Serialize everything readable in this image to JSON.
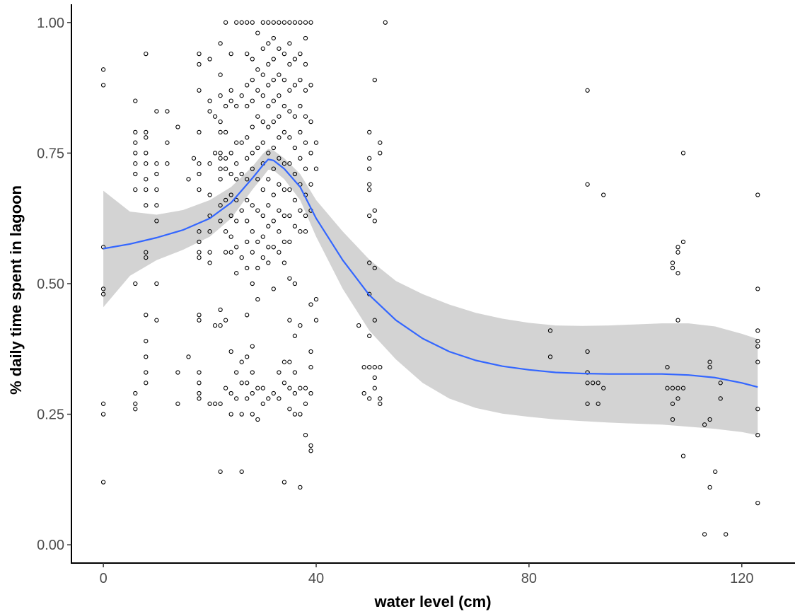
{
  "chart_data": {
    "type": "scatter",
    "xlabel": "water level (cm)",
    "ylabel": "% daily time spent in lagoon",
    "xlim": [
      -6,
      130
    ],
    "ylim": [
      -0.035,
      1.035
    ],
    "xticks": [
      0,
      40,
      80,
      120
    ],
    "xtick_labels": [
      "0",
      "40",
      "80",
      "120"
    ],
    "yticks": [
      0,
      0.25,
      0.5,
      0.75,
      1.0
    ],
    "ytick_labels": [
      "0.00",
      "0.25",
      "0.50",
      "0.75",
      "1.00"
    ],
    "grid": false,
    "legend": "none",
    "colors": {
      "points": "#000000",
      "smooth_line": "#3366ff",
      "confidence_band": "#d3d3d3"
    },
    "points": [
      [
        0,
        0.91
      ],
      [
        0,
        0.88
      ],
      [
        0,
        0.57
      ],
      [
        0,
        0.49
      ],
      [
        0,
        0.48
      ],
      [
        0,
        0.27
      ],
      [
        0,
        0.25
      ],
      [
        0,
        0.12
      ],
      [
        6,
        0.85
      ],
      [
        6,
        0.5
      ],
      [
        6,
        0.29
      ],
      [
        6,
        0.27
      ],
      [
        6,
        0.26
      ],
      [
        6,
        0.79
      ],
      [
        6,
        0.77
      ],
      [
        6,
        0.75
      ],
      [
        6,
        0.73
      ],
      [
        6,
        0.71
      ],
      [
        6,
        0.68
      ],
      [
        8,
        0.94
      ],
      [
        8,
        0.79
      ],
      [
        8,
        0.78
      ],
      [
        8,
        0.75
      ],
      [
        8,
        0.73
      ],
      [
        8,
        0.7
      ],
      [
        8,
        0.68
      ],
      [
        8,
        0.65
      ],
      [
        8,
        0.56
      ],
      [
        8,
        0.55
      ],
      [
        8,
        0.44
      ],
      [
        8,
        0.39
      ],
      [
        8,
        0.36
      ],
      [
        8,
        0.33
      ],
      [
        8,
        0.31
      ],
      [
        10,
        0.83
      ],
      [
        10,
        0.73
      ],
      [
        10,
        0.71
      ],
      [
        10,
        0.68
      ],
      [
        10,
        0.65
      ],
      [
        10,
        0.62
      ],
      [
        10,
        0.5
      ],
      [
        10,
        0.43
      ],
      [
        12,
        0.83
      ],
      [
        12,
        0.77
      ],
      [
        12,
        0.73
      ],
      [
        14,
        0.8
      ],
      [
        14,
        0.33
      ],
      [
        14,
        0.27
      ],
      [
        16,
        0.36
      ],
      [
        16,
        0.7
      ],
      [
        17,
        0.74
      ],
      [
        18,
        0.94
      ],
      [
        18,
        0.92
      ],
      [
        18,
        0.87
      ],
      [
        18,
        0.79
      ],
      [
        18,
        0.73
      ],
      [
        18,
        0.71
      ],
      [
        18,
        0.68
      ],
      [
        18,
        0.6
      ],
      [
        18,
        0.58
      ],
      [
        18,
        0.56
      ],
      [
        18,
        0.55
      ],
      [
        18,
        0.44
      ],
      [
        18,
        0.43
      ],
      [
        18,
        0.33
      ],
      [
        18,
        0.31
      ],
      [
        18,
        0.29
      ],
      [
        18,
        0.28
      ],
      [
        20,
        0.93
      ],
      [
        20,
        0.85
      ],
      [
        20,
        0.83
      ],
      [
        20,
        0.73
      ],
      [
        20,
        0.67
      ],
      [
        20,
        0.63
      ],
      [
        20,
        0.6
      ],
      [
        20,
        0.56
      ],
      [
        20,
        0.54
      ],
      [
        20,
        0.27
      ],
      [
        21,
        0.42
      ],
      [
        21,
        0.27
      ],
      [
        21,
        0.82
      ],
      [
        21,
        0.75
      ],
      [
        22,
        0.96
      ],
      [
        22,
        0.9
      ],
      [
        22,
        0.86
      ],
      [
        22,
        0.81
      ],
      [
        22,
        0.79
      ],
      [
        22,
        0.75
      ],
      [
        22,
        0.74
      ],
      [
        22,
        0.72
      ],
      [
        22,
        0.7
      ],
      [
        22,
        0.65
      ],
      [
        22,
        0.62
      ],
      [
        22,
        0.45
      ],
      [
        22,
        0.42
      ],
      [
        22,
        0.27
      ],
      [
        22,
        0.14
      ],
      [
        23,
        1.0
      ],
      [
        23,
        0.84
      ],
      [
        23,
        0.79
      ],
      [
        23,
        0.74
      ],
      [
        23,
        0.72
      ],
      [
        23,
        0.66
      ],
      [
        23,
        0.6
      ],
      [
        23,
        0.56
      ],
      [
        23,
        0.43
      ],
      [
        23,
        0.3
      ],
      [
        24,
        0.94
      ],
      [
        24,
        0.87
      ],
      [
        24,
        0.85
      ],
      [
        24,
        0.75
      ],
      [
        24,
        0.71
      ],
      [
        24,
        0.67
      ],
      [
        24,
        0.63
      ],
      [
        24,
        0.59
      ],
      [
        24,
        0.56
      ],
      [
        24,
        0.37
      ],
      [
        24,
        0.29
      ],
      [
        24,
        0.25
      ],
      [
        25,
        1.0
      ],
      [
        25,
        0.84
      ],
      [
        25,
        0.77
      ],
      [
        25,
        0.73
      ],
      [
        25,
        0.7
      ],
      [
        25,
        0.66
      ],
      [
        25,
        0.62
      ],
      [
        25,
        0.57
      ],
      [
        25,
        0.52
      ],
      [
        25,
        0.33
      ],
      [
        25,
        0.28
      ],
      [
        26,
        1.0
      ],
      [
        26,
        0.86
      ],
      [
        26,
        0.77
      ],
      [
        26,
        0.71
      ],
      [
        26,
        0.64
      ],
      [
        26,
        0.55
      ],
      [
        26,
        0.35
      ],
      [
        26,
        0.31
      ],
      [
        26,
        0.25
      ],
      [
        26,
        0.14
      ],
      [
        27,
        1.0
      ],
      [
        27,
        0.94
      ],
      [
        27,
        0.88
      ],
      [
        27,
        0.84
      ],
      [
        27,
        0.78
      ],
      [
        27,
        0.74
      ],
      [
        27,
        0.7
      ],
      [
        27,
        0.66
      ],
      [
        27,
        0.62
      ],
      [
        27,
        0.58
      ],
      [
        27,
        0.53
      ],
      [
        27,
        0.44
      ],
      [
        27,
        0.36
      ],
      [
        27,
        0.31
      ],
      [
        27,
        0.28
      ],
      [
        28,
        1.0
      ],
      [
        28,
        0.93
      ],
      [
        28,
        0.89
      ],
      [
        28,
        0.85
      ],
      [
        28,
        0.8
      ],
      [
        28,
        0.75
      ],
      [
        28,
        0.72
      ],
      [
        28,
        0.65
      ],
      [
        28,
        0.6
      ],
      [
        28,
        0.56
      ],
      [
        28,
        0.5
      ],
      [
        28,
        0.38
      ],
      [
        28,
        0.33
      ],
      [
        28,
        0.29
      ],
      [
        28,
        0.25
      ],
      [
        29,
        0.98
      ],
      [
        29,
        0.91
      ],
      [
        29,
        0.87
      ],
      [
        29,
        0.82
      ],
      [
        29,
        0.76
      ],
      [
        29,
        0.7
      ],
      [
        29,
        0.64
      ],
      [
        29,
        0.58
      ],
      [
        29,
        0.53
      ],
      [
        29,
        0.47
      ],
      [
        29,
        0.3
      ],
      [
        29,
        0.24
      ],
      [
        30,
        1.0
      ],
      [
        30,
        0.95
      ],
      [
        30,
        0.9
      ],
      [
        30,
        0.86
      ],
      [
        30,
        0.81
      ],
      [
        30,
        0.77
      ],
      [
        30,
        0.73
      ],
      [
        30,
        0.68
      ],
      [
        30,
        0.63
      ],
      [
        30,
        0.59
      ],
      [
        30,
        0.55
      ],
      [
        30,
        0.3
      ],
      [
        30,
        0.27
      ],
      [
        31,
        1.0
      ],
      [
        31,
        0.96
      ],
      [
        31,
        0.92
      ],
      [
        31,
        0.88
      ],
      [
        31,
        0.84
      ],
      [
        31,
        0.8
      ],
      [
        31,
        0.75
      ],
      [
        31,
        0.7
      ],
      [
        31,
        0.65
      ],
      [
        31,
        0.61
      ],
      [
        31,
        0.57
      ],
      [
        31,
        0.54
      ],
      [
        31,
        0.28
      ],
      [
        32,
        1.0
      ],
      [
        32,
        0.97
      ],
      [
        32,
        0.93
      ],
      [
        32,
        0.89
      ],
      [
        32,
        0.85
      ],
      [
        32,
        0.81
      ],
      [
        32,
        0.76
      ],
      [
        32,
        0.72
      ],
      [
        32,
        0.67
      ],
      [
        32,
        0.62
      ],
      [
        32,
        0.57
      ],
      [
        32,
        0.49
      ],
      [
        32,
        0.29
      ],
      [
        33,
        1.0
      ],
      [
        33,
        0.95
      ],
      [
        33,
        0.9
      ],
      [
        33,
        0.86
      ],
      [
        33,
        0.82
      ],
      [
        33,
        0.78
      ],
      [
        33,
        0.74
      ],
      [
        33,
        0.69
      ],
      [
        33,
        0.64
      ],
      [
        33,
        0.6
      ],
      [
        33,
        0.56
      ],
      [
        33,
        0.33
      ],
      [
        33,
        0.28
      ],
      [
        34,
        1.0
      ],
      [
        34,
        0.94
      ],
      [
        34,
        0.89
      ],
      [
        34,
        0.84
      ],
      [
        34,
        0.79
      ],
      [
        34,
        0.73
      ],
      [
        34,
        0.68
      ],
      [
        34,
        0.63
      ],
      [
        34,
        0.58
      ],
      [
        34,
        0.54
      ],
      [
        34,
        0.35
      ],
      [
        34,
        0.31
      ],
      [
        34,
        0.12
      ],
      [
        35,
        1.0
      ],
      [
        35,
        0.96
      ],
      [
        35,
        0.92
      ],
      [
        35,
        0.87
      ],
      [
        35,
        0.83
      ],
      [
        35,
        0.78
      ],
      [
        35,
        0.73
      ],
      [
        35,
        0.68
      ],
      [
        35,
        0.63
      ],
      [
        35,
        0.58
      ],
      [
        35,
        0.51
      ],
      [
        35,
        0.43
      ],
      [
        35,
        0.35
      ],
      [
        35,
        0.3
      ],
      [
        35,
        0.26
      ],
      [
        36,
        1.0
      ],
      [
        36,
        0.93
      ],
      [
        36,
        0.88
      ],
      [
        36,
        0.82
      ],
      [
        36,
        0.76
      ],
      [
        36,
        0.71
      ],
      [
        36,
        0.66
      ],
      [
        36,
        0.61
      ],
      [
        36,
        0.5
      ],
      [
        36,
        0.4
      ],
      [
        36,
        0.33
      ],
      [
        36,
        0.29
      ],
      [
        36,
        0.25
      ],
      [
        37,
        1.0
      ],
      [
        37,
        0.94
      ],
      [
        37,
        0.89
      ],
      [
        37,
        0.84
      ],
      [
        37,
        0.79
      ],
      [
        37,
        0.74
      ],
      [
        37,
        0.69
      ],
      [
        37,
        0.64
      ],
      [
        37,
        0.6
      ],
      [
        37,
        0.42
      ],
      [
        37,
        0.3
      ],
      [
        37,
        0.25
      ],
      [
        37,
        0.11
      ],
      [
        38,
        1.0
      ],
      [
        38,
        0.97
      ],
      [
        38,
        0.92
      ],
      [
        38,
        0.87
      ],
      [
        38,
        0.82
      ],
      [
        38,
        0.77
      ],
      [
        38,
        0.72
      ],
      [
        38,
        0.67
      ],
      [
        38,
        0.63
      ],
      [
        38,
        0.6
      ],
      [
        38,
        0.3
      ],
      [
        38,
        0.27
      ],
      [
        38,
        0.21
      ],
      [
        39,
        1.0
      ],
      [
        39,
        0.88
      ],
      [
        39,
        0.81
      ],
      [
        39,
        0.75
      ],
      [
        39,
        0.69
      ],
      [
        39,
        0.64
      ],
      [
        39,
        0.46
      ],
      [
        39,
        0.37
      ],
      [
        39,
        0.34
      ],
      [
        39,
        0.29
      ],
      [
        39,
        0.19
      ],
      [
        39,
        0.18
      ],
      [
        40,
        0.77
      ],
      [
        40,
        0.72
      ],
      [
        40,
        0.47
      ],
      [
        40,
        0.43
      ],
      [
        48,
        0.42
      ],
      [
        49,
        0.34
      ],
      [
        49,
        0.29
      ],
      [
        50,
        0.34
      ],
      [
        50,
        0.28
      ],
      [
        50,
        0.79
      ],
      [
        50,
        0.74
      ],
      [
        50,
        0.72
      ],
      [
        50,
        0.69
      ],
      [
        50,
        0.68
      ],
      [
        50,
        0.63
      ],
      [
        50,
        0.54
      ],
      [
        50,
        0.48
      ],
      [
        50,
        0.4
      ],
      [
        51,
        0.32
      ],
      [
        51,
        0.3
      ],
      [
        51,
        0.62
      ],
      [
        51,
        0.64
      ],
      [
        51,
        0.53
      ],
      [
        51,
        0.43
      ],
      [
        51,
        0.89
      ],
      [
        51,
        0.34
      ],
      [
        52,
        0.77
      ],
      [
        52,
        0.75
      ],
      [
        52,
        0.34
      ],
      [
        52,
        0.28
      ],
      [
        52,
        0.27
      ],
      [
        53,
        1.0
      ],
      [
        84,
        0.41
      ],
      [
        84,
        0.36
      ],
      [
        91,
        0.87
      ],
      [
        91,
        0.69
      ],
      [
        91,
        0.37
      ],
      [
        91,
        0.33
      ],
      [
        91,
        0.31
      ],
      [
        91,
        0.27
      ],
      [
        92,
        0.31
      ],
      [
        93,
        0.31
      ],
      [
        93,
        0.27
      ],
      [
        94,
        0.3
      ],
      [
        94,
        0.67
      ],
      [
        106,
        0.34
      ],
      [
        106,
        0.3
      ],
      [
        107,
        0.3
      ],
      [
        107,
        0.27
      ],
      [
        107,
        0.24
      ],
      [
        107,
        0.53
      ],
      [
        107,
        0.54
      ],
      [
        108,
        0.56
      ],
      [
        108,
        0.57
      ],
      [
        108,
        0.52
      ],
      [
        108,
        0.43
      ],
      [
        108,
        0.3
      ],
      [
        108,
        0.28
      ],
      [
        109,
        0.58
      ],
      [
        109,
        0.3
      ],
      [
        109,
        0.17
      ],
      [
        109,
        0.75
      ],
      [
        113,
        0.23
      ],
      [
        113,
        0.02
      ],
      [
        114,
        0.35
      ],
      [
        114,
        0.34
      ],
      [
        114,
        0.24
      ],
      [
        114,
        0.11
      ],
      [
        115,
        0.14
      ],
      [
        116,
        0.31
      ],
      [
        116,
        0.28
      ],
      [
        117,
        0.02
      ],
      [
        123,
        0.67
      ],
      [
        123,
        0.49
      ],
      [
        123,
        0.41
      ],
      [
        123,
        0.39
      ],
      [
        123,
        0.38
      ],
      [
        123,
        0.35
      ],
      [
        123,
        0.26
      ],
      [
        123,
        0.21
      ],
      [
        123,
        0.08
      ]
    ],
    "smooth_fit": {
      "x": [
        0,
        5,
        10,
        15,
        20,
        24,
        28,
        30,
        31,
        32,
        34,
        37,
        40,
        45,
        50,
        55,
        60,
        65,
        70,
        75,
        80,
        85,
        90,
        95,
        100,
        105,
        110,
        115,
        120,
        123
      ],
      "y": [
        0.567,
        0.576,
        0.588,
        0.603,
        0.625,
        0.655,
        0.702,
        0.727,
        0.738,
        0.736,
        0.72,
        0.685,
        0.625,
        0.545,
        0.478,
        0.43,
        0.395,
        0.37,
        0.353,
        0.342,
        0.335,
        0.33,
        0.328,
        0.327,
        0.327,
        0.327,
        0.325,
        0.32,
        0.31,
        0.302
      ],
      "lower": [
        0.455,
        0.515,
        0.545,
        0.565,
        0.59,
        0.625,
        0.68,
        0.705,
        0.718,
        0.717,
        0.7,
        0.66,
        0.59,
        0.49,
        0.41,
        0.355,
        0.31,
        0.28,
        0.262,
        0.251,
        0.245,
        0.24,
        0.237,
        0.234,
        0.232,
        0.23,
        0.226,
        0.222,
        0.216,
        0.21
      ],
      "upper": [
        0.678,
        0.638,
        0.632,
        0.641,
        0.66,
        0.685,
        0.724,
        0.749,
        0.758,
        0.755,
        0.74,
        0.71,
        0.66,
        0.6,
        0.546,
        0.505,
        0.48,
        0.46,
        0.444,
        0.433,
        0.425,
        0.42,
        0.419,
        0.42,
        0.422,
        0.424,
        0.424,
        0.418,
        0.404,
        0.394
      ]
    }
  }
}
